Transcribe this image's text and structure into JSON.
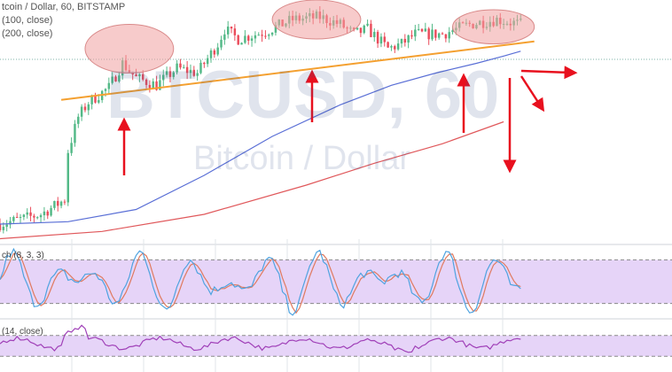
{
  "header": {
    "line1": "tcoin / Dollar, 60, BITSTAMP",
    "line2": "(100, close)",
    "line3": "(200, close)"
  },
  "watermark": {
    "symbol": "BTCUSD, 60",
    "name": "Bitcoin / Dollar"
  },
  "colors": {
    "up": "#53b987",
    "down": "#eb4d5c",
    "sma100": "#5a6fd6",
    "sma200": "#e0585b",
    "trendline": "#f4a030",
    "arrow": "#e8101e",
    "highlight": "#f0a0a0",
    "stoch_k": "#4fa3e0",
    "stoch_d": "#e07a5f",
    "rsi": "#a040b8",
    "band": "#e6d4f8"
  },
  "chart_data": [
    {
      "type": "candlestick",
      "title": "tcoin / Dollar, 60, BITSTAMP",
      "ylim": [
        0,
        100
      ],
      "xlim": [
        0,
        155
      ],
      "overlays": [
        {
          "name": "(100, close)",
          "type": "line",
          "color": "#5a6fd6",
          "points": [
            [
              0,
              8
            ],
            [
              20,
              9
            ],
            [
              40,
              14
            ],
            [
              60,
              28
            ],
            [
              80,
              44
            ],
            [
              100,
              57
            ],
            [
              115,
              65
            ],
            [
              128,
              70
            ],
            [
              140,
              74
            ],
            [
              148,
              77
            ],
            [
              153,
              79
            ]
          ]
        },
        {
          "name": "(200, close)",
          "type": "line",
          "color": "#e0585b",
          "points": [
            [
              0,
              2
            ],
            [
              30,
              5
            ],
            [
              60,
              12
            ],
            [
              90,
              24
            ],
            [
              110,
              33
            ],
            [
              130,
              41
            ],
            [
              148,
              50
            ]
          ]
        }
      ],
      "trendline": {
        "from": [
          18,
          59
        ],
        "to": [
          157,
          83
        ]
      },
      "highlights": [
        {
          "x": 38,
          "y": 80,
          "rx": 13,
          "ry": 10
        },
        {
          "x": 93,
          "y": 92,
          "rx": 13,
          "ry": 8
        },
        {
          "x": 145,
          "y": 89,
          "rx": 12,
          "ry": 7
        }
      ]
    },
    {
      "type": "line",
      "title": "ch (8, 3, 3)",
      "ylim": [
        0,
        100
      ],
      "band": [
        20,
        80
      ]
    },
    {
      "type": "line",
      "title": "(14, close)",
      "ylim": [
        0,
        100
      ],
      "band": [
        30,
        70
      ]
    }
  ]
}
